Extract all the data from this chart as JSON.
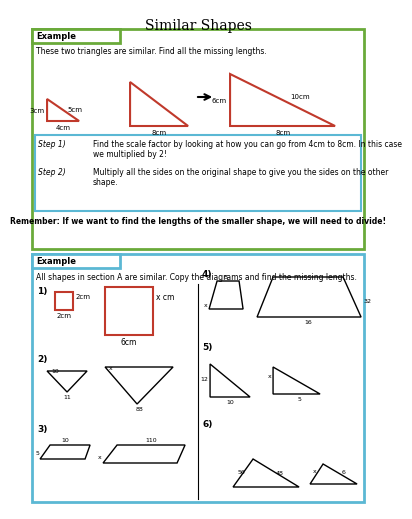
{
  "title": "Similar Shapes",
  "title_fontsize": 10,
  "bg_color": "#ffffff",
  "green_border": "#6aaa3a",
  "blue_border": "#5bb8d4",
  "red_color": "#c0392b",
  "section1": {
    "example_label": "Example",
    "intro_text": "These two triangles are similar. Find all the missing lengths.",
    "step1_label": "Step 1)",
    "step1_text": "Find the scale factor by looking at how you can go from 4cm to 8cm. In this case\nwe multiplied by 2!",
    "step2_label": "Step 2)",
    "step2_text": "Multiply all the sides on the original shape to give you the sides on the other\nshape.",
    "remember_text": "Remember: If we want to find the lengths of the smaller shape, we will need to divide!",
    "tri1": {
      "base": "4cm",
      "height": "3cm",
      "hyp": "5cm"
    },
    "tri2": {
      "base": "8cm"
    },
    "tri3": {
      "base": "8cm",
      "height": "6cm",
      "hyp": "10cm"
    }
  },
  "section2": {
    "example_label": "Example",
    "intro_text": "All shapes in section A are similar. Copy the diagrams and find the missing lengths.",
    "q1_label": "1)",
    "q1_small_side": "2cm",
    "q1_small_base": "2cm",
    "q1_large_base": "6cm",
    "q1_x": "x cm",
    "q2_label": "2)",
    "q2_vals": [
      "10",
      "x",
      "11",
      "88"
    ],
    "q3_label": "3)",
    "q3_vals": [
      "10",
      "110",
      "5",
      "x"
    ],
    "q4_label": "4)",
    "q4_vals": [
      "8",
      "x",
      "16",
      "32"
    ],
    "q5_label": "5)",
    "q5_vals": [
      "12",
      "x",
      "10",
      "5"
    ],
    "q6_label": "6)",
    "q6_vals": [
      "56",
      "48",
      "x",
      "6"
    ]
  }
}
